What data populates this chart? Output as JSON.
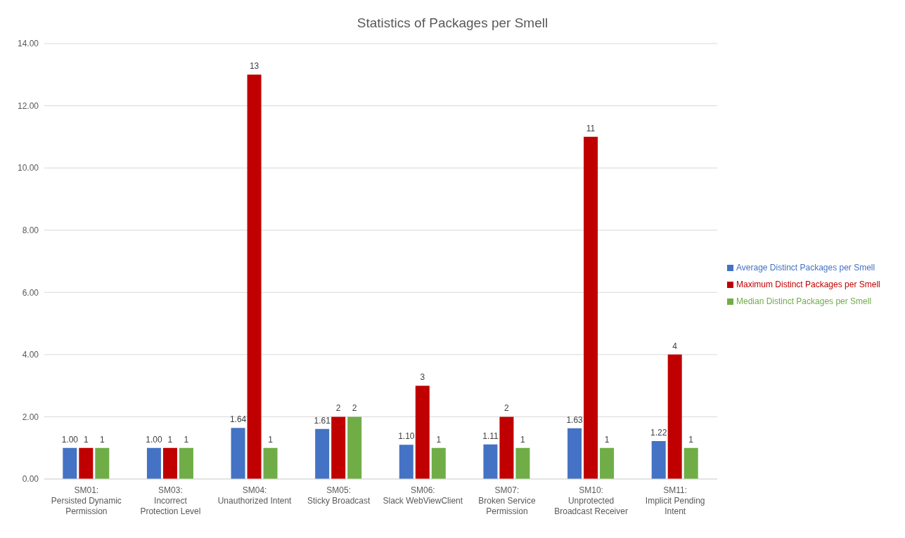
{
  "chart_data": {
    "type": "bar",
    "title": "Statistics of Packages per Smell",
    "categories": [
      "SM01: Persisted Dynamic Permission",
      "SM03: Incorrect Protection Level",
      "SM04: Unauthorized Intent",
      "SM05: Sticky Broadcast",
      "SM06: Slack WebViewClient",
      "SM07: Broken Service Permission",
      "SM10: Unprotected Broadcast Receiver",
      "SM11: Implicit Pending Intent"
    ],
    "series": [
      {
        "name": "Average Distinct Packages per Smell",
        "color": "#4472c4",
        "values": [
          1.0,
          1.0,
          1.64,
          1.61,
          1.1,
          1.11,
          1.63,
          1.22
        ],
        "value_labels": [
          "1.00",
          "1.00",
          "1.64",
          "1.61",
          "1.10",
          "1.11",
          "1.63",
          "1.22"
        ]
      },
      {
        "name": "Maximum Distinct Packages per Smell",
        "color": "#c00000",
        "values": [
          1,
          1,
          13,
          2,
          3,
          2,
          11,
          4
        ],
        "value_labels": [
          "1",
          "1",
          "13",
          "2",
          "3",
          "2",
          "11",
          "4"
        ]
      },
      {
        "name": "Median Distinct Packages per Smell",
        "color": "#70ad47",
        "values": [
          1,
          1,
          1,
          2,
          1,
          1,
          1,
          1
        ],
        "value_labels": [
          "1",
          "1",
          "1",
          "2",
          "1",
          "1",
          "1",
          "1"
        ]
      }
    ],
    "ylim": [
      0,
      14
    ],
    "yticks": [
      {
        "value": 0,
        "label": "0.00"
      },
      {
        "value": 2,
        "label": "2.00"
      },
      {
        "value": 4,
        "label": "4.00"
      },
      {
        "value": 6,
        "label": "6.00"
      },
      {
        "value": 8,
        "label": "8.00"
      },
      {
        "value": 10,
        "label": "10.00"
      },
      {
        "value": 12,
        "label": "12.00"
      },
      {
        "value": 14,
        "label": "14.00"
      }
    ],
    "grid": "y",
    "legend": "right"
  }
}
